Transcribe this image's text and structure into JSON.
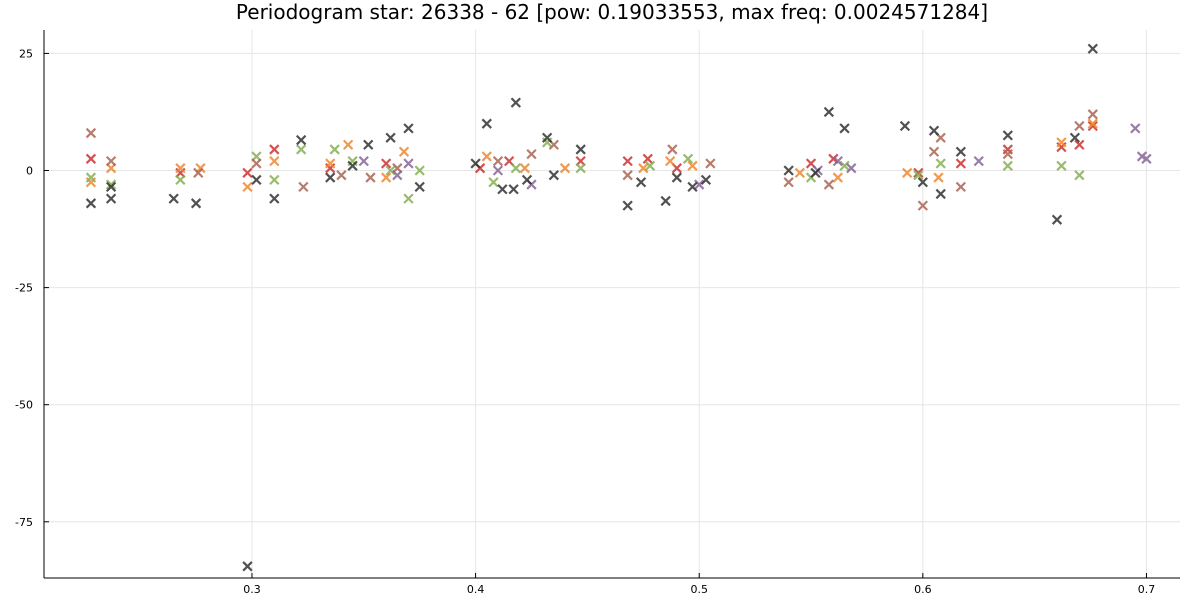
{
  "chart_data": {
    "type": "scatter",
    "title": "Periodogram star: 26338 - 62 [pow: 0.19033553, max freq: 0.0024571284]",
    "xlabel": "",
    "ylabel": "",
    "xlim": [
      0.207,
      0.715
    ],
    "ylim": [
      -87,
      30
    ],
    "x_ticks": [
      0.3,
      0.4,
      0.5,
      0.6,
      0.7
    ],
    "x_tick_labels": [
      "0.3",
      "0.4",
      "0.5",
      "0.6",
      "0.7"
    ],
    "y_ticks": [
      25,
      0,
      -25,
      -50,
      -75
    ],
    "y_tick_labels": [
      "25",
      "0",
      "-25",
      "-50",
      "-75"
    ],
    "grid": true,
    "legend": false,
    "marker": "x",
    "series": [
      {
        "color": "#cc3333",
        "points": [
          [
            0.228,
            2.5
          ],
          [
            0.268,
            -0.5
          ],
          [
            0.298,
            -0.5
          ],
          [
            0.31,
            4.5
          ],
          [
            0.335,
            0.5
          ],
          [
            0.36,
            1.5
          ],
          [
            0.402,
            0.5
          ],
          [
            0.415,
            2
          ],
          [
            0.447,
            2
          ],
          [
            0.468,
            2
          ],
          [
            0.477,
            2.5
          ],
          [
            0.49,
            0.5
          ],
          [
            0.55,
            1.5
          ],
          [
            0.56,
            2.5
          ],
          [
            0.598,
            -0.5
          ],
          [
            0.617,
            1.5
          ],
          [
            0.638,
            4.5
          ],
          [
            0.662,
            5
          ],
          [
            0.67,
            5.5
          ],
          [
            0.676,
            9.5
          ]
        ]
      },
      {
        "color": "#ee8833",
        "points": [
          [
            0.228,
            -2.5
          ],
          [
            0.237,
            0.5
          ],
          [
            0.268,
            0.5
          ],
          [
            0.277,
            0.5
          ],
          [
            0.298,
            -3.5
          ],
          [
            0.31,
            2
          ],
          [
            0.335,
            1.5
          ],
          [
            0.343,
            5.5
          ],
          [
            0.36,
            -1.5
          ],
          [
            0.368,
            4
          ],
          [
            0.405,
            3
          ],
          [
            0.422,
            0.5
          ],
          [
            0.44,
            0.5
          ],
          [
            0.475,
            0.5
          ],
          [
            0.487,
            2
          ],
          [
            0.497,
            1
          ],
          [
            0.545,
            -0.5
          ],
          [
            0.562,
            -1.5
          ],
          [
            0.593,
            -0.5
          ],
          [
            0.607,
            -1.5
          ],
          [
            0.662,
            6
          ],
          [
            0.676,
            10
          ]
        ]
      },
      {
        "color": "#88b055",
        "points": [
          [
            0.228,
            -1.5
          ],
          [
            0.237,
            -3
          ],
          [
            0.268,
            -2
          ],
          [
            0.302,
            3
          ],
          [
            0.31,
            -2
          ],
          [
            0.322,
            4.5
          ],
          [
            0.337,
            4.5
          ],
          [
            0.345,
            2
          ],
          [
            0.362,
            0
          ],
          [
            0.37,
            -6
          ],
          [
            0.375,
            0
          ],
          [
            0.408,
            -2.5
          ],
          [
            0.418,
            0.5
          ],
          [
            0.432,
            6
          ],
          [
            0.447,
            0.5
          ],
          [
            0.478,
            1
          ],
          [
            0.495,
            2.5
          ],
          [
            0.55,
            -1.5
          ],
          [
            0.565,
            1
          ],
          [
            0.598,
            -1
          ],
          [
            0.608,
            1.5
          ],
          [
            0.638,
            1
          ],
          [
            0.662,
            1
          ],
          [
            0.67,
            -1
          ]
        ]
      },
      {
        "color": "#aa6655",
        "points": [
          [
            0.228,
            8
          ],
          [
            0.237,
            2
          ],
          [
            0.276,
            -0.5
          ],
          [
            0.302,
            1.5
          ],
          [
            0.323,
            -3.5
          ],
          [
            0.34,
            -1
          ],
          [
            0.353,
            -1.5
          ],
          [
            0.365,
            0.5
          ],
          [
            0.41,
            2
          ],
          [
            0.425,
            3.5
          ],
          [
            0.435,
            5.5
          ],
          [
            0.468,
            -1
          ],
          [
            0.488,
            4.5
          ],
          [
            0.505,
            1.5
          ],
          [
            0.54,
            -2.5
          ],
          [
            0.558,
            -3
          ],
          [
            0.6,
            -7.5
          ],
          [
            0.605,
            4
          ],
          [
            0.608,
            7
          ],
          [
            0.617,
            -3.5
          ],
          [
            0.638,
            3.5
          ],
          [
            0.67,
            9.5
          ],
          [
            0.676,
            12
          ]
        ]
      },
      {
        "color": "#886699",
        "points": [
          [
            0.35,
            2
          ],
          [
            0.365,
            -1
          ],
          [
            0.37,
            1.5
          ],
          [
            0.41,
            0
          ],
          [
            0.425,
            -3
          ],
          [
            0.5,
            -3
          ],
          [
            0.553,
            0
          ],
          [
            0.562,
            2
          ],
          [
            0.568,
            0.5
          ],
          [
            0.625,
            2
          ],
          [
            0.695,
            9
          ],
          [
            0.698,
            3
          ],
          [
            0.7,
            2.5
          ]
        ]
      },
      {
        "color": "#333333",
        "points": [
          [
            0.228,
            -7
          ],
          [
            0.237,
            -6
          ],
          [
            0.237,
            -3.5
          ],
          [
            0.265,
            -6
          ],
          [
            0.275,
            -7
          ],
          [
            0.298,
            -84.5
          ],
          [
            0.302,
            -2
          ],
          [
            0.31,
            -6
          ],
          [
            0.322,
            6.5
          ],
          [
            0.335,
            -1.5
          ],
          [
            0.345,
            1
          ],
          [
            0.352,
            5.5
          ],
          [
            0.362,
            7
          ],
          [
            0.37,
            9
          ],
          [
            0.375,
            -3.5
          ],
          [
            0.4,
            1.5
          ],
          [
            0.405,
            10
          ],
          [
            0.412,
            -4
          ],
          [
            0.417,
            -4
          ],
          [
            0.418,
            14.5
          ],
          [
            0.423,
            -2
          ],
          [
            0.432,
            7
          ],
          [
            0.435,
            -1
          ],
          [
            0.447,
            4.5
          ],
          [
            0.468,
            -7.5
          ],
          [
            0.474,
            -2.5
          ],
          [
            0.485,
            -6.5
          ],
          [
            0.49,
            -1.5
          ],
          [
            0.497,
            -3.5
          ],
          [
            0.503,
            -2
          ],
          [
            0.54,
            0
          ],
          [
            0.552,
            -0.5
          ],
          [
            0.558,
            12.5
          ],
          [
            0.565,
            9
          ],
          [
            0.592,
            9.5
          ],
          [
            0.6,
            -2.5
          ],
          [
            0.605,
            8.5
          ],
          [
            0.608,
            -5
          ],
          [
            0.617,
            4
          ],
          [
            0.638,
            7.5
          ],
          [
            0.66,
            -10.5
          ],
          [
            0.668,
            7
          ],
          [
            0.676,
            26
          ]
        ]
      }
    ]
  }
}
